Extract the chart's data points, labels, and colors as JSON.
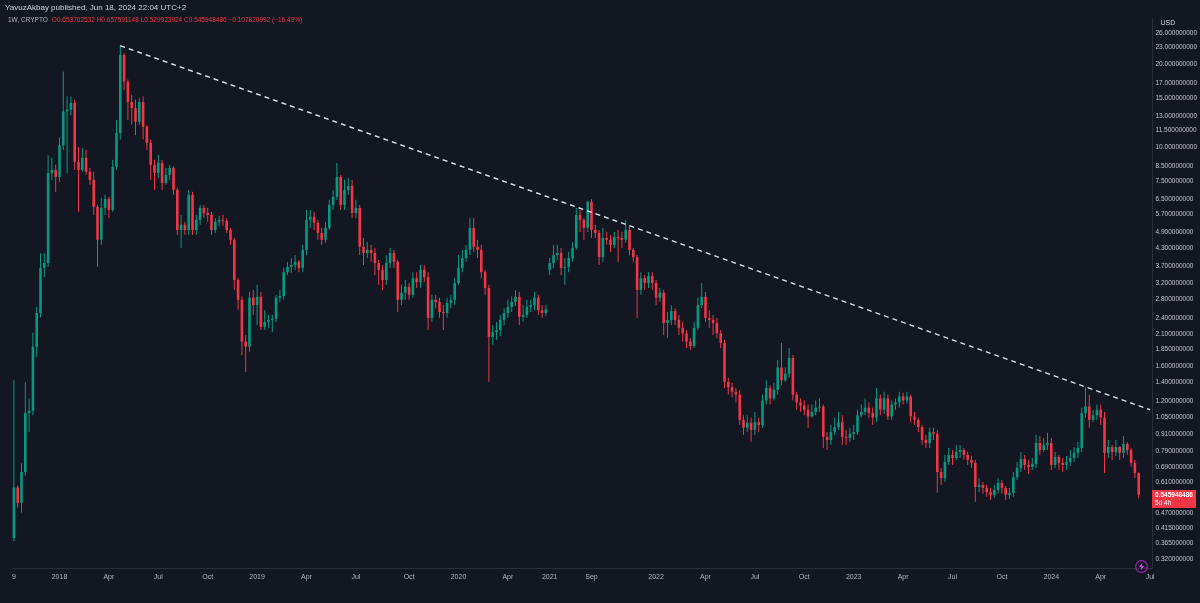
{
  "chart_data": {
    "type": "candlestick",
    "title": "YavuzAkbay published, Jun 18, 2024 22:04 UTC+2",
    "subtitle": "1W, CRYPTO",
    "ylabel": "USD",
    "annotations": [
      "O0.653762532 H0.657591148 L0.529923924 C0.545948486 −0.107820992 (−16.49%)",
      "0.545948486",
      "5d 4h"
    ],
    "log": true,
    "ylim": [
      0.296,
      29.5
    ],
    "yticks": [
      {
        "value": 26,
        "label": "26.000000000"
      },
      {
        "value": 23,
        "label": "23.000000000"
      },
      {
        "value": 20,
        "label": "20.000000000"
      },
      {
        "value": 17,
        "label": "17.000000000"
      },
      {
        "value": 15,
        "label": "15.000000000"
      },
      {
        "value": 13,
        "label": "13.000000000"
      },
      {
        "value": 11.5,
        "label": "11.500000000"
      },
      {
        "value": 10,
        "label": "10.000000000"
      },
      {
        "value": 8.5,
        "label": "8.500000000"
      },
      {
        "value": 7.5,
        "label": "7.500000000"
      },
      {
        "value": 6.5,
        "label": "6.500000000"
      },
      {
        "value": 5.7,
        "label": "5.700000000"
      },
      {
        "value": 4.9,
        "label": "4.900000000"
      },
      {
        "value": 4.3,
        "label": "4.300000000"
      },
      {
        "value": 3.7,
        "label": "3.700000000"
      },
      {
        "value": 3.2,
        "label": "3.200000000"
      },
      {
        "value": 2.8,
        "label": "2.800000000"
      },
      {
        "value": 2.4,
        "label": "2.400000000"
      },
      {
        "value": 2.1,
        "label": "2.100000000"
      },
      {
        "value": 1.85,
        "label": "1.850000000"
      },
      {
        "value": 1.6,
        "label": "1.600000000"
      },
      {
        "value": 1.4,
        "label": "1.400000000"
      },
      {
        "value": 1.2,
        "label": "1.200000000"
      },
      {
        "value": 1.05,
        "label": "1.050000000"
      },
      {
        "value": 0.91,
        "label": "0.910000000"
      },
      {
        "value": 0.79,
        "label": "0.790000000"
      },
      {
        "value": 0.69,
        "label": "0.690000000"
      },
      {
        "value": 0.61,
        "label": "0.610000000"
      },
      {
        "value": 0.47,
        "label": "0.470000000"
      },
      {
        "value": 0.415,
        "label": "0.415000000"
      },
      {
        "value": 0.365,
        "label": "0.365000000"
      },
      {
        "value": 0.32,
        "label": "0.320000000"
      }
    ],
    "categories": [
      "9",
      null,
      null,
      null,
      null,
      null,
      null,
      null,
      null,
      null,
      null,
      null,
      "2018",
      null,
      null,
      null,
      null,
      null,
      null,
      null,
      null,
      null,
      null,
      null,
      null,
      "Apr",
      null,
      null,
      null,
      null,
      null,
      null,
      null,
      null,
      null,
      null,
      null,
      null,
      "Jul",
      null,
      null,
      null,
      null,
      null,
      null,
      null,
      null,
      null,
      null,
      null,
      null,
      "Oct",
      null,
      null,
      null,
      null,
      null,
      null,
      null,
      null,
      null,
      null,
      null,
      null,
      "2019",
      null,
      null,
      null,
      null,
      null,
      null,
      null,
      null,
      null,
      null,
      null,
      null,
      "Apr",
      null,
      null,
      null,
      null,
      null,
      null,
      null,
      null,
      null,
      null,
      null,
      null,
      "Jul",
      null,
      null,
      null,
      null,
      null,
      null,
      null,
      null,
      null,
      null,
      null,
      null,
      null,
      "Oct",
      null,
      null,
      null,
      null,
      null,
      null,
      null,
      null,
      null,
      null,
      null,
      null,
      "2020",
      null,
      null,
      null,
      null,
      null,
      null,
      null,
      null,
      null,
      null,
      null,
      null,
      "Apr",
      null,
      null,
      null,
      null,
      null,
      null,
      null,
      null,
      null,
      null,
      "2021",
      null,
      null,
      null,
      null,
      null,
      null,
      null,
      null,
      null,
      null,
      "Sep",
      null,
      null,
      null,
      null,
      null,
      null,
      null,
      null,
      null,
      null,
      null,
      null,
      null,
      null,
      null,
      null,
      "2022",
      null,
      null,
      null,
      null,
      null,
      null,
      null,
      null,
      null,
      null,
      null,
      null,
      "Apr",
      null,
      null,
      null,
      null,
      null,
      null,
      null,
      null,
      null,
      null,
      null,
      null,
      "Jul",
      null,
      null,
      null,
      null,
      null,
      null,
      null,
      null,
      null,
      null,
      null,
      null,
      "Oct",
      null,
      null,
      null,
      null,
      null,
      null,
      null,
      null,
      null,
      null,
      null,
      null,
      "2023",
      null,
      null,
      null,
      null,
      null,
      null,
      null,
      null,
      null,
      null,
      null,
      null,
      "Apr",
      null,
      null,
      null,
      null,
      null,
      null,
      null,
      null,
      null,
      null,
      null,
      null,
      "Jul",
      null,
      null,
      null,
      null,
      null,
      null,
      null,
      null,
      null,
      null,
      null,
      null,
      "Oct",
      null,
      null,
      null,
      null,
      null,
      null,
      null,
      null,
      null,
      null,
      null,
      null,
      "2024",
      null,
      null,
      null,
      null,
      null,
      null,
      null,
      null,
      null,
      null,
      null,
      null,
      "Apr",
      null,
      null,
      null,
      null,
      null,
      null,
      null,
      null,
      null,
      null,
      null,
      null,
      "Jul"
    ],
    "ohlc": [
      [
        0.38,
        1.42,
        0.37,
        0.58
      ],
      [
        0.58,
        0.59,
        0.49,
        0.51
      ],
      [
        0.51,
        0.71,
        0.47,
        0.66
      ],
      [
        0.66,
        1.4,
        0.64,
        1.08
      ],
      [
        1.08,
        1.22,
        0.92,
        1.1
      ],
      [
        1.1,
        2.11,
        1.06,
        1.88
      ],
      [
        1.88,
        2.62,
        1.72,
        2.49
      ],
      [
        2.49,
        4.1,
        2.4,
        3.63
      ],
      [
        3.63,
        4.1,
        3.36,
        3.78
      ],
      [
        3.78,
        9.3,
        3.66,
        8.0
      ],
      [
        8.0,
        9.1,
        7.57,
        8.23
      ],
      [
        8.23,
        8.6,
        6.85,
        7.76
      ],
      [
        7.76,
        10.8,
        7.45,
        10.1
      ],
      [
        10.1,
        18.7,
        9.72,
        13.4
      ],
      [
        13.4,
        15.2,
        8.0,
        13.6
      ],
      [
        13.6,
        15.2,
        13.0,
        14.4
      ],
      [
        14.4,
        14.8,
        8.23,
        8.8
      ],
      [
        8.8,
        9.95,
        5.8,
        8.23
      ],
      [
        8.23,
        9.9,
        8.1,
        9.1
      ],
      [
        9.1,
        9.72,
        7.89,
        8.1
      ],
      [
        8.1,
        8.37,
        7.26,
        7.57
      ],
      [
        7.57,
        8.1,
        5.65,
        6.04
      ],
      [
        6.04,
        6.14,
        3.66,
        4.59
      ],
      [
        4.59,
        6.52,
        4.4,
        5.99
      ],
      [
        5.99,
        6.68,
        5.65,
        6.46
      ],
      [
        6.46,
        6.57,
        5.5,
        5.89
      ],
      [
        5.89,
        8.95,
        5.8,
        8.44
      ],
      [
        8.44,
        12.5,
        8.23,
        11.2
      ],
      [
        11.2,
        23.2,
        10.6,
        21.5
      ],
      [
        21.5,
        21.8,
        16.0,
        17.2
      ],
      [
        17.2,
        17.5,
        12.5,
        14.5
      ],
      [
        14.5,
        15.4,
        12.0,
        13.8
      ],
      [
        13.8,
        14.8,
        11.0,
        12.3
      ],
      [
        12.3,
        15.0,
        12.0,
        14.5
      ],
      [
        14.5,
        15.2,
        10.6,
        11.8
      ],
      [
        11.8,
        12.0,
        9.72,
        10.3
      ],
      [
        10.3,
        10.6,
        7.57,
        8.58
      ],
      [
        8.58,
        8.95,
        6.96,
        8.03
      ],
      [
        8.03,
        9.33,
        7.7,
        8.72
      ],
      [
        8.72,
        8.95,
        6.96,
        7.38
      ],
      [
        7.38,
        8.37,
        7.26,
        7.89
      ],
      [
        7.89,
        8.58,
        7.57,
        8.37
      ],
      [
        8.37,
        8.5,
        6.68,
        6.96
      ],
      [
        6.96,
        7.08,
        4.78,
        4.98
      ],
      [
        4.98,
        5.65,
        4.29,
        5.2
      ],
      [
        5.2,
        5.33,
        4.78,
        4.98
      ],
      [
        4.98,
        6.96,
        4.78,
        6.68
      ],
      [
        6.68,
        6.85,
        4.78,
        4.98
      ],
      [
        4.98,
        5.65,
        4.78,
        5.42
      ],
      [
        5.42,
        6.14,
        5.2,
        5.99
      ],
      [
        5.99,
        6.14,
        5.5,
        5.74
      ],
      [
        5.74,
        6.0,
        5.33,
        5.65
      ],
      [
        5.65,
        5.8,
        4.78,
        4.98
      ],
      [
        4.98,
        5.5,
        4.86,
        5.33
      ],
      [
        5.33,
        5.6,
        5.16,
        5.42
      ],
      [
        5.42,
        5.65,
        5.16,
        5.38
      ],
      [
        5.38,
        5.5,
        4.86,
        4.98
      ],
      [
        4.98,
        5.07,
        4.4,
        4.59
      ],
      [
        4.59,
        4.66,
        3.02,
        3.28
      ],
      [
        3.28,
        3.34,
        2.55,
        2.78
      ],
      [
        2.78,
        2.86,
        1.75,
        1.96
      ],
      [
        1.96,
        2.07,
        1.52,
        1.88
      ],
      [
        1.88,
        2.97,
        1.8,
        2.83
      ],
      [
        2.83,
        3.02,
        2.45,
        2.66
      ],
      [
        2.66,
        3.15,
        2.25,
        2.85
      ],
      [
        2.85,
        2.97,
        2.16,
        2.22
      ],
      [
        2.22,
        2.55,
        2.16,
        2.31
      ],
      [
        2.31,
        2.45,
        2.2,
        2.35
      ],
      [
        2.35,
        2.45,
        2.12,
        2.37
      ],
      [
        2.37,
        2.9,
        2.31,
        2.83
      ],
      [
        2.83,
        3.02,
        2.73,
        2.87
      ],
      [
        2.87,
        3.63,
        2.78,
        3.5
      ],
      [
        3.5,
        3.82,
        3.42,
        3.66
      ],
      [
        3.66,
        3.94,
        3.48,
        3.72
      ],
      [
        3.72,
        4.04,
        3.57,
        3.82
      ],
      [
        3.82,
        3.88,
        3.5,
        3.63
      ],
      [
        3.63,
        4.4,
        3.5,
        4.22
      ],
      [
        4.22,
        5.89,
        4.04,
        5.42
      ],
      [
        5.42,
        5.89,
        5.07,
        5.56
      ],
      [
        5.56,
        5.8,
        4.98,
        5.29
      ],
      [
        5.29,
        5.42,
        4.59,
        4.86
      ],
      [
        4.86,
        5.07,
        4.4,
        4.59
      ],
      [
        4.59,
        5.33,
        4.48,
        5.07
      ],
      [
        5.07,
        6.41,
        4.98,
        6.14
      ],
      [
        6.14,
        6.96,
        5.89,
        6.57
      ],
      [
        6.57,
        8.72,
        6.41,
        7.76
      ],
      [
        7.76,
        7.89,
        5.89,
        6.14
      ],
      [
        6.14,
        7.57,
        5.89,
        6.96
      ],
      [
        6.96,
        7.7,
        6.68,
        7.2
      ],
      [
        7.2,
        7.57,
        5.5,
        5.74
      ],
      [
        5.74,
        6.41,
        5.5,
        5.99
      ],
      [
        5.99,
        6.14,
        4.04,
        4.33
      ],
      [
        4.33,
        4.66,
        3.72,
        4.11
      ],
      [
        4.11,
        4.51,
        3.94,
        4.22
      ],
      [
        4.22,
        4.4,
        3.82,
        4.11
      ],
      [
        4.11,
        4.29,
        3.42,
        3.78
      ],
      [
        3.78,
        3.88,
        3.15,
        3.57
      ],
      [
        3.57,
        3.72,
        3.02,
        3.28
      ],
      [
        3.28,
        4.04,
        3.15,
        3.78
      ],
      [
        3.78,
        4.29,
        3.63,
        4.11
      ],
      [
        4.11,
        4.22,
        3.63,
        3.82
      ],
      [
        3.82,
        3.88,
        2.51,
        2.78
      ],
      [
        2.78,
        3.15,
        2.66,
        2.95
      ],
      [
        2.95,
        3.28,
        2.78,
        3.1
      ],
      [
        3.1,
        3.2,
        2.78,
        2.9
      ],
      [
        2.9,
        3.5,
        2.83,
        3.33
      ],
      [
        3.33,
        3.5,
        3.07,
        3.22
      ],
      [
        3.22,
        3.72,
        3.07,
        3.57
      ],
      [
        3.57,
        3.72,
        3.22,
        3.36
      ],
      [
        3.36,
        3.5,
        2.16,
        2.39
      ],
      [
        2.39,
        2.9,
        2.31,
        2.78
      ],
      [
        2.78,
        2.9,
        2.59,
        2.73
      ],
      [
        2.73,
        2.83,
        2.39,
        2.51
      ],
      [
        2.51,
        2.66,
        2.16,
        2.49
      ],
      [
        2.49,
        2.83,
        2.39,
        2.71
      ],
      [
        2.71,
        2.9,
        2.59,
        2.78
      ],
      [
        2.78,
        3.34,
        2.66,
        3.2
      ],
      [
        3.2,
        4.04,
        3.15,
        3.63
      ],
      [
        3.63,
        4.22,
        3.5,
        3.94
      ],
      [
        3.94,
        4.4,
        3.82,
        4.22
      ],
      [
        4.22,
        5.5,
        4.04,
        5.07
      ],
      [
        5.07,
        5.5,
        4.15,
        4.33
      ],
      [
        4.33,
        4.59,
        3.94,
        4.22
      ],
      [
        4.22,
        4.4,
        3.33,
        3.5
      ],
      [
        3.5,
        3.57,
        2.9,
        3.07
      ],
      [
        3.07,
        3.15,
        1.4,
        2.04
      ],
      [
        2.04,
        2.25,
        1.91,
        2.12
      ],
      [
        2.12,
        2.31,
        1.99,
        2.16
      ],
      [
        2.16,
        2.45,
        2.05,
        2.35
      ],
      [
        2.35,
        2.59,
        2.25,
        2.49
      ],
      [
        2.49,
        2.78,
        2.39,
        2.62
      ],
      [
        2.62,
        2.86,
        2.51,
        2.73
      ],
      [
        2.73,
        3.02,
        2.64,
        2.85
      ],
      [
        2.85,
        2.97,
        2.25,
        2.41
      ],
      [
        2.41,
        2.66,
        2.31,
        2.45
      ],
      [
        2.45,
        2.78,
        2.39,
        2.62
      ],
      [
        2.62,
        2.78,
        2.51,
        2.66
      ],
      [
        2.66,
        2.97,
        2.55,
        2.83
      ],
      [
        2.83,
        2.9,
        2.45,
        2.55
      ],
      [
        2.55,
        2.66,
        2.39,
        2.49
      ],
      [
        2.49,
        2.66,
        2.43,
        2.57
      ],
      [
        3.57,
        3.94,
        3.42,
        3.78
      ],
      [
        3.78,
        4.4,
        3.63,
        4.04
      ],
      [
        4.04,
        4.4,
        3.88,
        4.11
      ],
      [
        4.11,
        4.29,
        3.42,
        3.63
      ],
      [
        3.63,
        3.94,
        3.15,
        3.66
      ],
      [
        3.66,
        4.15,
        3.5,
        3.94
      ],
      [
        3.94,
        4.51,
        3.82,
        4.29
      ],
      [
        4.29,
        5.99,
        4.22,
        5.65
      ],
      [
        5.65,
        5.89,
        4.9,
        5.42
      ],
      [
        5.42,
        5.5,
        4.59,
        5.07
      ],
      [
        5.07,
        6.35,
        4.9,
        6.3
      ],
      [
        6.3,
        6.45,
        4.66,
        4.98
      ],
      [
        4.98,
        5.2,
        4.66,
        4.86
      ],
      [
        4.86,
        4.98,
        3.72,
        3.97
      ],
      [
        3.97,
        5.07,
        3.82,
        4.66
      ],
      [
        4.66,
        4.9,
        4.4,
        4.59
      ],
      [
        4.59,
        4.78,
        4.15,
        4.4
      ],
      [
        4.4,
        4.9,
        4.29,
        4.7
      ],
      [
        4.7,
        4.98,
        3.82,
        4.66
      ],
      [
        4.66,
        4.9,
        4.29,
        4.59
      ],
      [
        4.59,
        5.42,
        4.48,
        4.98
      ],
      [
        4.98,
        5.16,
        4.04,
        4.22
      ],
      [
        4.22,
        4.29,
        3.82,
        3.97
      ],
      [
        3.97,
        4.04,
        2.39,
        3.02
      ],
      [
        3.02,
        3.5,
        2.9,
        3.33
      ],
      [
        3.33,
        3.42,
        3.02,
        3.2
      ],
      [
        3.2,
        3.5,
        3.07,
        3.39
      ],
      [
        3.39,
        3.5,
        3.02,
        3.2
      ],
      [
        3.2,
        3.28,
        2.66,
        2.83
      ],
      [
        2.83,
        3.07,
        2.73,
        2.95
      ],
      [
        2.95,
        3.02,
        2.07,
        2.29
      ],
      [
        2.29,
        2.51,
        2.02,
        2.35
      ],
      [
        2.35,
        2.66,
        2.25,
        2.53
      ],
      [
        2.53,
        2.59,
        2.25,
        2.35
      ],
      [
        2.35,
        2.45,
        2.07,
        2.2
      ],
      [
        2.2,
        2.31,
        1.96,
        2.1
      ],
      [
        2.1,
        2.16,
        1.86,
        1.96
      ],
      [
        1.96,
        2.02,
        1.83,
        1.89
      ],
      [
        1.89,
        2.31,
        1.86,
        2.2
      ],
      [
        2.2,
        2.83,
        2.16,
        2.66
      ],
      [
        2.66,
        3.2,
        2.59,
        2.85
      ],
      [
        2.85,
        2.97,
        2.31,
        2.39
      ],
      [
        2.39,
        2.55,
        2.2,
        2.35
      ],
      [
        2.35,
        2.45,
        2.07,
        2.29
      ],
      [
        2.29,
        2.39,
        2.02,
        2.1
      ],
      [
        2.1,
        2.16,
        1.86,
        1.94
      ],
      [
        1.94,
        1.99,
        1.33,
        1.4
      ],
      [
        1.4,
        1.45,
        1.26,
        1.34
      ],
      [
        1.34,
        1.39,
        1.23,
        1.29
      ],
      [
        1.29,
        1.33,
        1.18,
        1.26
      ],
      [
        1.26,
        1.31,
        0.978,
        1.02
      ],
      [
        1.02,
        1.06,
        0.9,
        0.955
      ],
      [
        0.955,
        1.06,
        0.92,
        0.996
      ],
      [
        0.996,
        1.04,
        0.85,
        0.938
      ],
      [
        0.938,
        1.09,
        0.9,
        1.0
      ],
      [
        1.0,
        1.04,
        0.92,
        0.978
      ],
      [
        0.978,
        1.26,
        0.955,
        1.2
      ],
      [
        1.2,
        1.42,
        1.16,
        1.33
      ],
      [
        1.33,
        1.36,
        1.16,
        1.22
      ],
      [
        1.22,
        1.39,
        1.2,
        1.31
      ],
      [
        1.31,
        1.68,
        1.26,
        1.58
      ],
      [
        1.58,
        1.94,
        1.36,
        1.42
      ],
      [
        1.42,
        1.58,
        1.4,
        1.5
      ],
      [
        1.5,
        1.86,
        1.45,
        1.71
      ],
      [
        1.71,
        1.75,
        1.2,
        1.26
      ],
      [
        1.26,
        1.29,
        1.11,
        1.18
      ],
      [
        1.18,
        1.22,
        1.09,
        1.15
      ],
      [
        1.15,
        1.2,
        1.06,
        1.11
      ],
      [
        1.11,
        1.16,
        0.955,
        1.05
      ],
      [
        1.05,
        1.16,
        1.04,
        1.09
      ],
      [
        1.09,
        1.2,
        1.06,
        1.13
      ],
      [
        1.13,
        1.22,
        1.09,
        1.14
      ],
      [
        1.14,
        1.16,
        0.806,
        0.885
      ],
      [
        0.885,
        0.92,
        0.793,
        0.862
      ],
      [
        0.862,
        0.978,
        0.827,
        0.92
      ],
      [
        0.92,
        1.04,
        0.9,
        0.96
      ],
      [
        0.96,
        1.09,
        0.938,
        1.0
      ],
      [
        1.0,
        1.06,
        0.827,
        0.885
      ],
      [
        0.885,
        0.938,
        0.827,
        0.877
      ],
      [
        0.877,
        0.955,
        0.848,
        0.908
      ],
      [
        0.908,
        0.978,
        0.862,
        0.92
      ],
      [
        0.92,
        1.11,
        0.9,
        1.06
      ],
      [
        1.06,
        1.16,
        1.04,
        1.09
      ],
      [
        1.09,
        1.22,
        1.06,
        1.13
      ],
      [
        1.13,
        1.18,
        1.04,
        1.08
      ],
      [
        1.08,
        1.13,
        0.978,
        1.04
      ],
      [
        1.04,
        1.33,
        1.0,
        1.22
      ],
      [
        1.22,
        1.26,
        1.06,
        1.11
      ],
      [
        1.11,
        1.29,
        1.07,
        1.22
      ],
      [
        1.22,
        1.26,
        1.02,
        1.05
      ],
      [
        1.05,
        1.2,
        1.02,
        1.16
      ],
      [
        1.16,
        1.22,
        1.11,
        1.18
      ],
      [
        1.18,
        1.29,
        1.13,
        1.24
      ],
      [
        1.24,
        1.28,
        1.16,
        1.2
      ],
      [
        1.2,
        1.29,
        1.17,
        1.24
      ],
      [
        1.24,
        1.26,
        1.0,
        1.05
      ],
      [
        1.05,
        1.09,
        0.978,
        1.02
      ],
      [
        1.02,
        1.04,
        0.92,
        0.96
      ],
      [
        0.96,
        0.978,
        0.827,
        0.862
      ],
      [
        0.862,
        0.9,
        0.806,
        0.841
      ],
      [
        0.841,
        0.955,
        0.806,
        0.92
      ],
      [
        0.92,
        0.955,
        0.862,
        0.908
      ],
      [
        0.908,
        0.938,
        0.555,
        0.66
      ],
      [
        0.66,
        0.683,
        0.592,
        0.627
      ],
      [
        0.627,
        0.761,
        0.607,
        0.718
      ],
      [
        0.718,
        0.806,
        0.7,
        0.761
      ],
      [
        0.761,
        0.793,
        0.7,
        0.742
      ],
      [
        0.742,
        0.827,
        0.73,
        0.78
      ],
      [
        0.78,
        0.827,
        0.742,
        0.793
      ],
      [
        0.793,
        0.806,
        0.73,
        0.761
      ],
      [
        0.761,
        0.78,
        0.7,
        0.73
      ],
      [
        0.73,
        0.755,
        0.683,
        0.712
      ],
      [
        0.712,
        0.73,
        0.514,
        0.582
      ],
      [
        0.582,
        0.627,
        0.558,
        0.592
      ],
      [
        0.592,
        0.607,
        0.55,
        0.578
      ],
      [
        0.578,
        0.592,
        0.536,
        0.558
      ],
      [
        0.558,
        0.578,
        0.522,
        0.545
      ],
      [
        0.545,
        0.592,
        0.531,
        0.568
      ],
      [
        0.568,
        0.627,
        0.55,
        0.602
      ],
      [
        0.602,
        0.617,
        0.55,
        0.578
      ],
      [
        0.578,
        0.587,
        0.522,
        0.545
      ],
      [
        0.545,
        0.578,
        0.527,
        0.554
      ],
      [
        0.554,
        0.66,
        0.536,
        0.632
      ],
      [
        0.632,
        0.718,
        0.617,
        0.683
      ],
      [
        0.683,
        0.78,
        0.66,
        0.736
      ],
      [
        0.736,
        0.761,
        0.671,
        0.7
      ],
      [
        0.7,
        0.73,
        0.649,
        0.689
      ],
      [
        0.689,
        0.742,
        0.671,
        0.706
      ],
      [
        0.706,
        0.9,
        0.683,
        0.841
      ],
      [
        0.841,
        0.892,
        0.761,
        0.793
      ],
      [
        0.793,
        0.877,
        0.78,
        0.827
      ],
      [
        0.827,
        0.915,
        0.793,
        0.841
      ],
      [
        0.841,
        0.877,
        0.671,
        0.7
      ],
      [
        0.7,
        0.78,
        0.683,
        0.748
      ],
      [
        0.748,
        0.761,
        0.671,
        0.712
      ],
      [
        0.712,
        0.742,
        0.66,
        0.7
      ],
      [
        0.7,
        0.755,
        0.671,
        0.718
      ],
      [
        0.718,
        0.793,
        0.694,
        0.742
      ],
      [
        0.742,
        0.813,
        0.718,
        0.774
      ],
      [
        0.774,
        0.848,
        0.742,
        0.806
      ],
      [
        0.806,
        1.13,
        0.78,
        1.08
      ],
      [
        1.08,
        1.34,
        1.04,
        1.14
      ],
      [
        1.14,
        1.26,
        0.955,
        1.02
      ],
      [
        1.02,
        1.11,
        1.0,
        1.06
      ],
      [
        1.06,
        1.16,
        1.02,
        1.11
      ],
      [
        1.11,
        1.16,
        0.978,
        1.04
      ],
      [
        1.04,
        1.09,
        0.654,
        0.774
      ],
      [
        0.774,
        0.862,
        0.742,
        0.813
      ],
      [
        0.813,
        0.827,
        0.73,
        0.78
      ],
      [
        0.78,
        0.862,
        0.755,
        0.813
      ],
      [
        0.813,
        0.82,
        0.73,
        0.774
      ],
      [
        0.774,
        0.892,
        0.742,
        0.834
      ],
      [
        0.834,
        0.848,
        0.761,
        0.793
      ],
      [
        0.793,
        0.806,
        0.689,
        0.712
      ],
      [
        0.712,
        0.73,
        0.627,
        0.654
      ],
      [
        0.653762532,
        0.657591148,
        0.529923924,
        0.545948486
      ],
      null,
      null,
      null
    ],
    "colors": [
      "#089981",
      "#f23645",
      "#089981",
      "#089981",
      "#089981",
      "#089981",
      "#089981",
      "#089981",
      "#089981",
      "#089981",
      "#089981",
      "#f23645",
      "#089981",
      "#089981",
      "#089981",
      "#089981",
      "#f23645",
      "#f23645",
      "#089981",
      "#f23645",
      "#f23645",
      "#f23645",
      "#f23645",
      "#089981",
      "#089981",
      "#f23645",
      "#089981",
      "#089981",
      "#089981",
      "#f23645",
      "#f23645",
      "#f23645",
      "#f23645",
      "#089981",
      "#f23645",
      "#f23645",
      "#f23645",
      "#f23645",
      "#089981",
      "#f23645",
      "#089981",
      "#089981",
      "#f23645",
      "#f23645",
      "#089981",
      "#f23645",
      "#089981",
      "#f23645",
      "#089981",
      "#089981",
      "#f23645",
      "#f23645",
      "#f23645",
      "#089981",
      "#089981",
      "#f23645",
      "#f23645",
      "#f23645",
      "#f23645",
      "#f23645",
      "#f23645",
      "#f23645",
      "#089981",
      "#f23645",
      "#089981",
      "#f23645",
      "#089981",
      "#089981",
      "#089981",
      "#089981",
      "#089981",
      "#089981",
      "#089981",
      "#089981",
      "#089981",
      "#f23645",
      "#089981",
      "#089981",
      "#089981",
      "#f23645",
      "#f23645",
      "#f23645",
      "#089981",
      "#089981",
      "#089981",
      "#089981",
      "#f23645",
      "#089981",
      "#089981",
      "#f23645",
      "#089981",
      "#f23645",
      "#f23645",
      "#089981",
      "#f23645",
      "#f23645",
      "#f23645",
      "#f23645",
      "#089981",
      "#089981",
      "#f23645",
      "#f23645",
      "#089981",
      "#089981",
      "#f23645",
      "#089981",
      "#f23645",
      "#089981",
      "#f23645",
      "#f23645",
      "#089981",
      "#f23645",
      "#f23645",
      "#f23645",
      "#089981",
      "#089981",
      "#089981",
      "#089981",
      "#089981",
      "#089981",
      "#089981",
      "#f23645",
      "#f23645",
      "#f23645",
      "#f23645",
      "#f23645",
      "#089981",
      "#089981",
      "#089981",
      "#089981",
      "#089981",
      "#089981",
      "#089981",
      "#f23645",
      "#089981",
      "#089981",
      "#089981",
      "#089981",
      "#f23645",
      "#f23645",
      "#089981",
      "#089981",
      "#089981",
      "#089981",
      "#f23645",
      "#089981",
      "#089981",
      "#089981",
      "#089981",
      "#f23645",
      "#f23645",
      "#089981",
      "#f23645",
      "#f23645",
      "#f23645",
      "#089981",
      "#f23645",
      "#f23645",
      "#089981",
      "#f23645",
      "#f23645",
      "#089981",
      "#f23645",
      "#f23645",
      "#f23645",
      "#089981",
      "#f23645",
      "#089981",
      "#f23645",
      "#f23645",
      "#089981",
      "#f23645",
      "#089981",
      "#089981",
      "#f23645",
      "#f23645",
      "#f23645",
      "#f23645",
      "#f23645",
      "#089981",
      "#089981",
      "#089981",
      "#f23645",
      "#f23645",
      "#f23645",
      "#f23645",
      "#f23645",
      "#f23645",
      "#f23645",
      "#f23645",
      "#f23645",
      "#f23645",
      "#f23645",
      "#089981",
      "#f23645",
      "#089981",
      "#f23645",
      "#089981",
      "#089981",
      "#f23645",
      "#089981",
      "#089981",
      "#f23645",
      "#089981",
      "#089981",
      "#f23645",
      "#f23645",
      "#f23645",
      "#f23645",
      "#f23645",
      "#089981",
      "#089981",
      "#089981",
      "#f23645",
      "#f23645",
      "#089981",
      "#089981",
      "#089981",
      "#f23645",
      "#f23645",
      "#089981",
      "#089981",
      "#089981",
      "#089981",
      "#089981",
      "#f23645",
      "#f23645",
      "#089981",
      "#f23645",
      "#089981",
      "#f23645",
      "#089981",
      "#089981",
      "#089981",
      "#f23645",
      "#089981",
      "#f23645",
      "#f23645",
      "#f23645",
      "#f23645",
      "#f23645",
      "#089981",
      "#f23645",
      "#f23645",
      "#f23645",
      "#089981",
      "#089981",
      "#f23645",
      "#089981",
      "#089981",
      "#f23645",
      "#f23645",
      "#f23645",
      "#f23645",
      "#089981",
      "#f23645",
      "#f23645",
      "#f23645",
      "#089981",
      "#089981",
      "#f23645",
      "#f23645",
      "#089981",
      "#089981",
      "#089981",
      "#089981",
      "#f23645",
      "#f23645",
      "#089981",
      "#089981",
      "#f23645",
      "#089981",
      "#089981",
      "#f23645",
      "#089981",
      "#f23645",
      "#f23645",
      "#089981",
      "#089981",
      "#089981",
      "#089981",
      "#089981",
      "#089981",
      "#f23645",
      "#089981",
      "#089981",
      "#f23645",
      "#f23645",
      "#089981",
      "#f23645",
      "#089981",
      "#f23645",
      "#089981",
      "#f23645",
      "#f23645",
      "#f23645",
      "#f23645",
      null,
      null,
      null
    ],
    "series": [
      {
        "type": "line",
        "color": "#e0e3eb",
        "line_style": "dashed",
        "values": [
          null,
          null,
          null,
          null,
          null,
          null,
          null,
          null,
          null,
          null,
          null,
          null,
          null,
          null,
          null,
          null,
          null,
          null,
          null,
          null,
          null,
          null,
          null,
          null,
          null,
          null,
          null,
          null,
          23.2,
          null,
          null,
          null,
          null,
          null,
          null,
          null,
          null,
          null,
          null,
          null,
          null,
          null,
          null,
          null,
          null,
          null,
          null,
          null,
          null,
          null,
          null,
          null,
          null,
          null,
          null,
          null,
          null,
          null,
          null,
          null,
          null,
          null,
          null,
          null,
          null,
          null,
          null,
          null,
          null,
          null,
          null,
          null,
          null,
          null,
          null,
          null,
          null,
          null,
          null,
          null,
          null,
          null,
          null,
          null,
          null,
          null,
          null,
          null,
          null,
          null,
          null,
          null,
          null,
          null,
          null,
          null,
          null,
          null,
          null,
          null,
          null,
          null,
          null,
          null,
          null,
          null,
          null,
          null,
          null,
          null,
          null,
          null,
          null,
          null,
          null,
          null,
          null,
          null,
          null,
          null,
          null,
          null,
          null,
          null,
          null,
          null,
          null,
          null,
          null,
          null,
          null,
          null,
          null,
          null,
          null,
          null,
          null,
          null,
          null,
          null,
          null,
          null,
          null,
          null,
          null,
          null,
          null,
          null,
          null,
          null,
          null,
          null,
          null,
          null,
          null,
          null,
          null,
          null,
          null,
          null,
          null,
          null,
          null,
          null,
          null,
          null,
          null,
          null,
          null,
          null,
          null,
          null,
          null,
          null,
          null,
          null,
          null,
          null,
          null,
          null,
          null,
          null,
          null,
          null,
          null,
          null,
          null,
          null,
          null,
          null,
          null,
          null,
          null,
          null,
          null,
          null,
          null,
          null,
          null,
          null,
          null,
          null,
          null,
          null,
          null,
          null,
          null,
          null,
          null,
          null,
          null,
          null,
          null,
          null,
          null,
          null,
          null,
          null,
          null,
          null,
          null,
          null,
          null,
          null,
          null,
          null,
          null,
          null,
          null,
          null,
          null,
          null,
          null,
          null,
          null,
          null,
          null,
          null,
          null,
          null,
          null,
          null,
          null,
          null,
          null,
          null,
          null,
          null,
          null,
          null,
          null,
          null,
          null,
          null,
          null,
          null,
          null,
          null,
          null,
          null,
          null,
          null,
          null,
          null,
          null,
          null,
          null,
          null,
          null,
          null,
          null,
          null,
          null,
          null,
          null,
          null,
          null,
          null,
          null,
          null,
          null,
          null,
          null,
          null,
          null,
          null,
          null,
          null,
          null,
          null,
          null,
          null,
          null,
          null,
          null,
          null,
          null,
          null,
          null,
          1.11
        ]
      }
    ]
  }
}
